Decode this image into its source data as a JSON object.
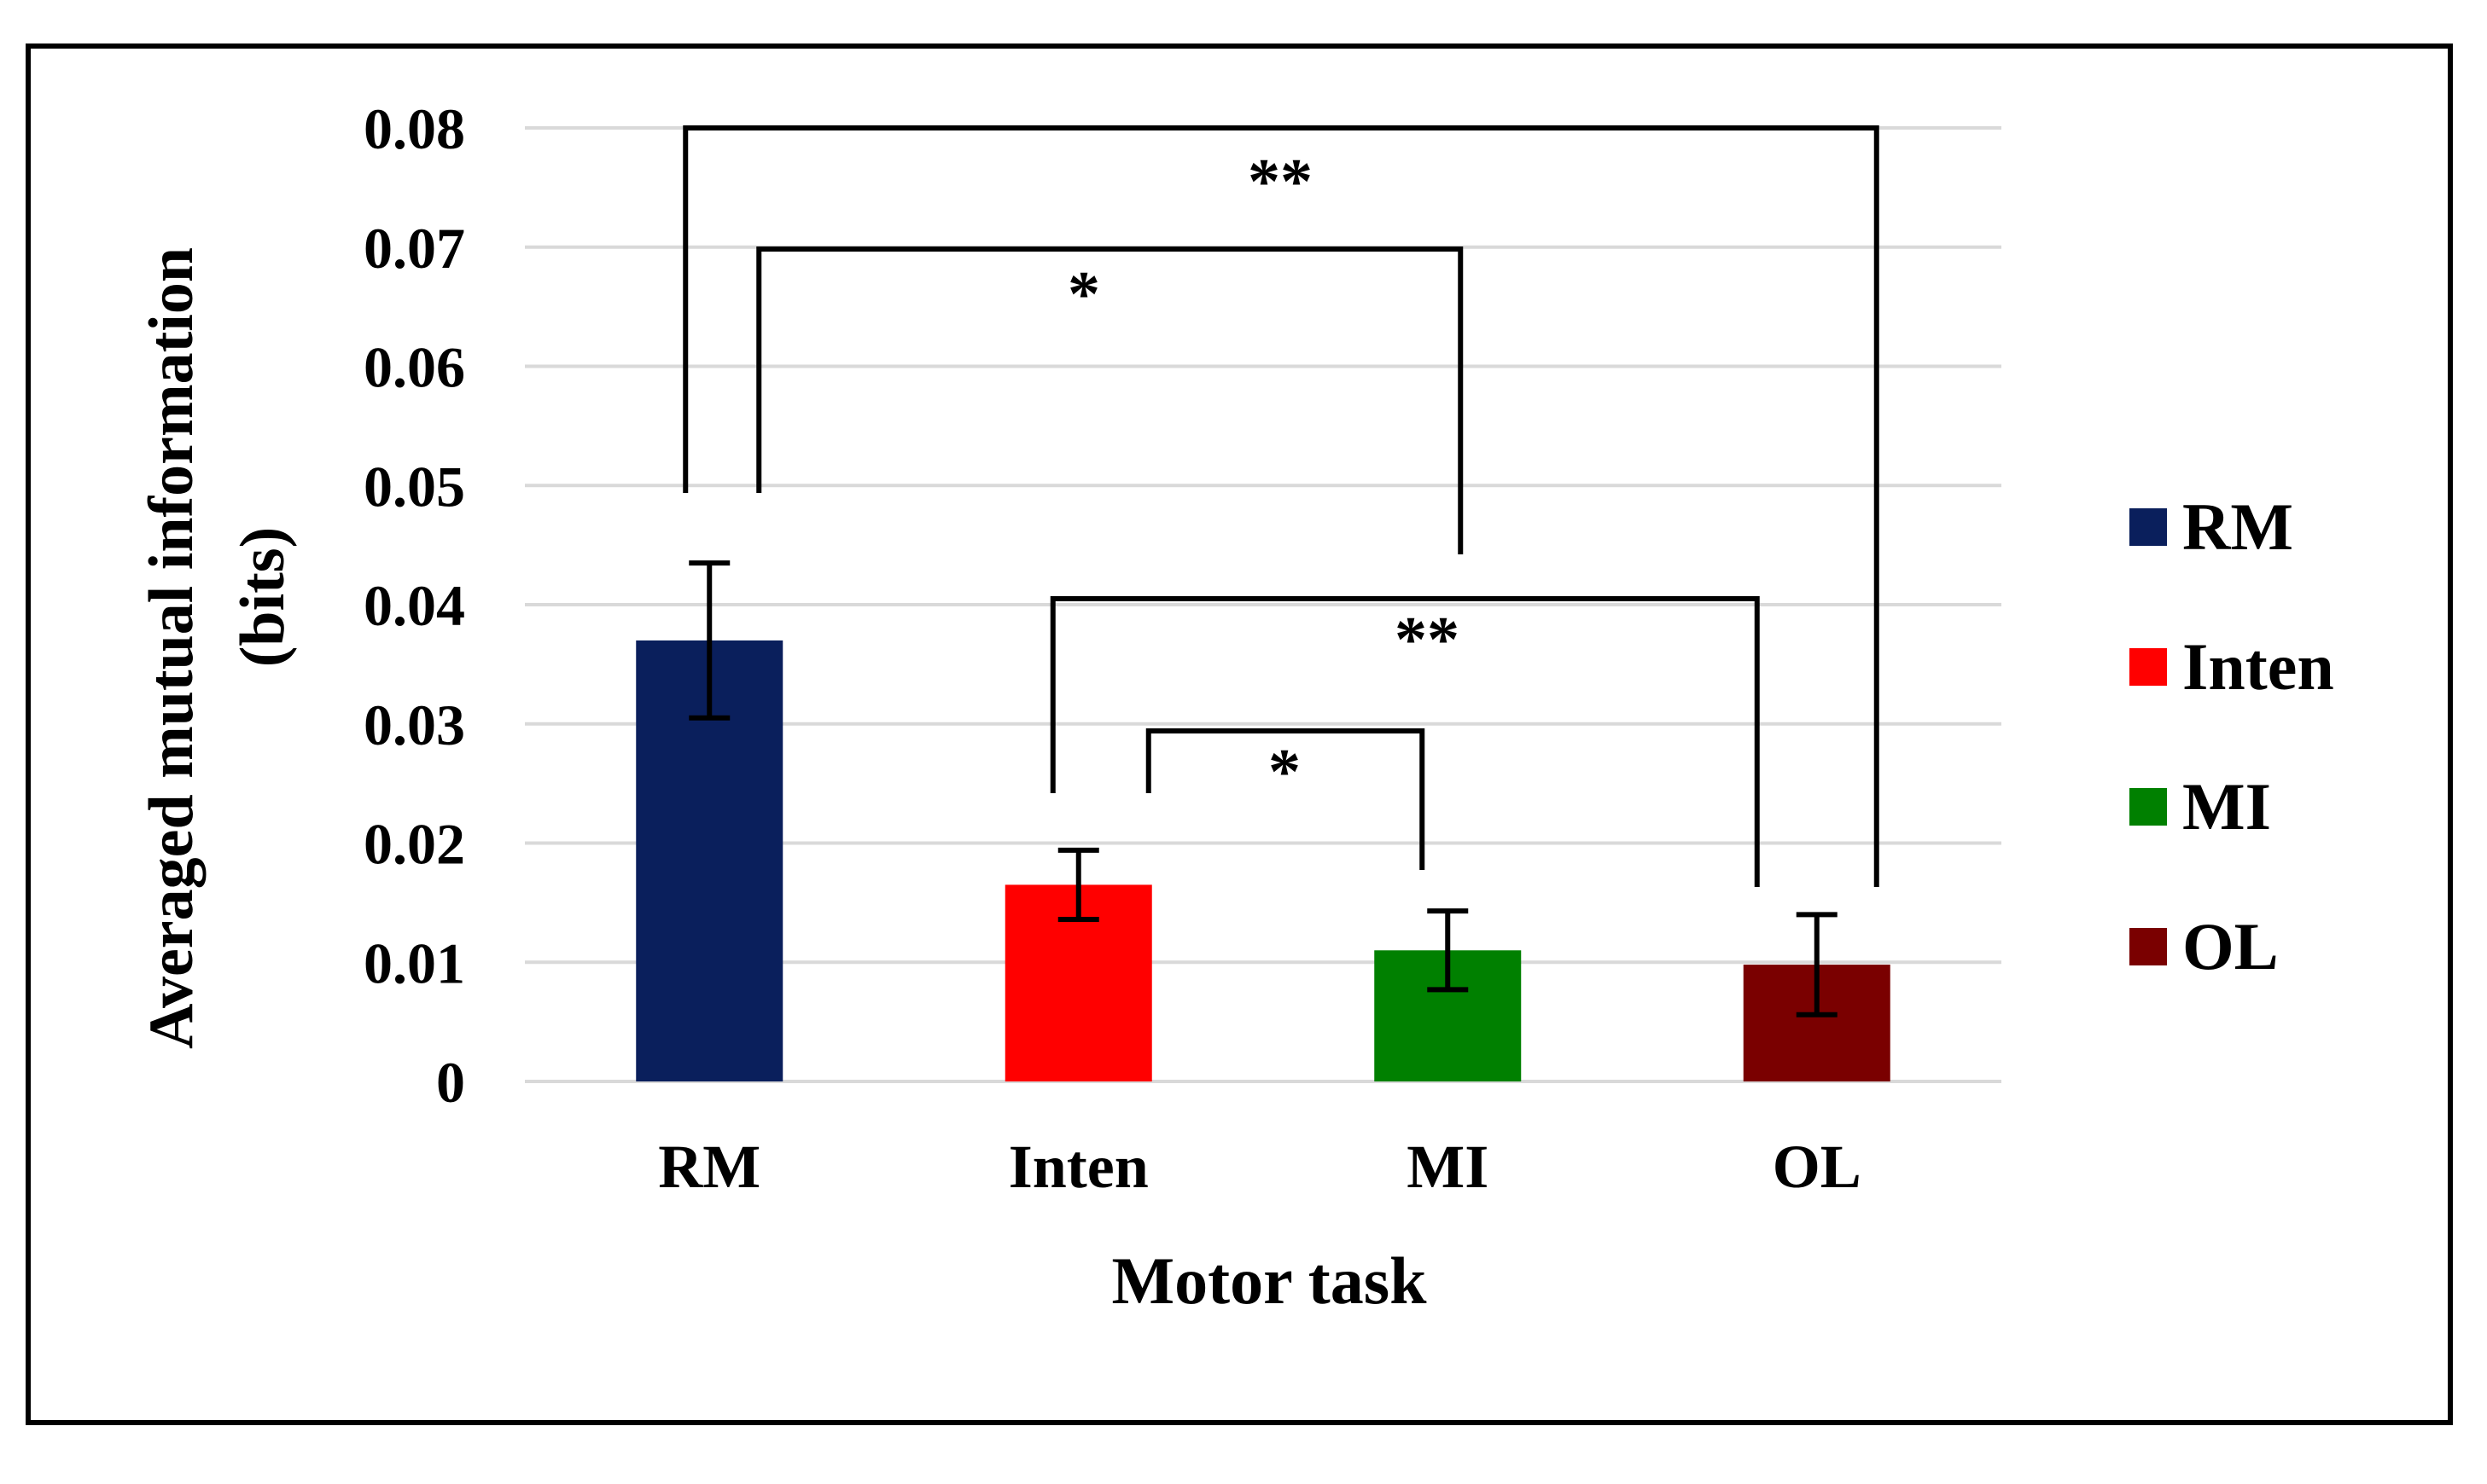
{
  "chart_data": {
    "type": "bar",
    "title": "",
    "xlabel": "Motor task",
    "ylabel_line1": "Averaged mutual information",
    "ylabel_line2": "(bits)",
    "categories": [
      "RM",
      "Inten",
      "MI",
      "OL"
    ],
    "values": [
      0.037,
      0.0165,
      0.011,
      0.0098
    ],
    "error": [
      0.0065,
      0.0029,
      0.0033,
      0.0042
    ],
    "colors": [
      "#0A1F5C",
      "#FF0000",
      "#008000",
      "#7A0000"
    ],
    "ylim": [
      0,
      0.08
    ],
    "yticks": [
      0,
      0.01,
      0.02,
      0.03,
      0.04,
      0.05,
      0.06,
      0.07,
      0.08
    ],
    "ytick_labels": [
      "0",
      "0.01",
      "0.02",
      "0.03",
      "0.04",
      "0.05",
      "0.06",
      "0.07",
      "0.08"
    ],
    "grid": true,
    "legend_position": "right",
    "legend": [
      {
        "label": "RM",
        "color": "#0A1F5C"
      },
      {
        "label": "Inten",
        "color": "#FF0000"
      },
      {
        "label": "MI",
        "color": "#008000"
      },
      {
        "label": "OL",
        "color": "#7A0000"
      }
    ],
    "significance": [
      {
        "from": "RM",
        "to": "OL",
        "label": "**"
      },
      {
        "from": "RM",
        "to": "MI",
        "label": "*"
      },
      {
        "from": "Inten",
        "to": "OL",
        "label": "**"
      },
      {
        "from": "Inten",
        "to": "MI",
        "label": "*"
      }
    ]
  }
}
